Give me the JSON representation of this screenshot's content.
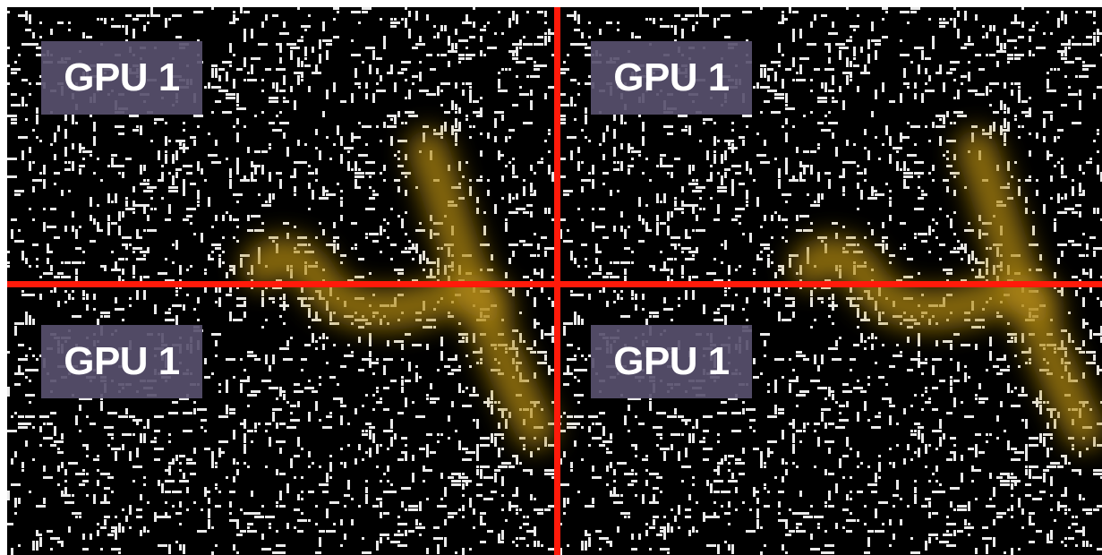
{
  "labels": {
    "top_left": "GPU 1",
    "top_right": "GPU 1",
    "bottom_left": "GPU 1",
    "bottom_right": "GPU 1"
  },
  "colors": {
    "background": "#000000",
    "noise": "#ffffff",
    "glow": "#b48c14",
    "split_line": "#ff1a0a",
    "label_bg": "#58506e",
    "label_text": "#ffffff"
  }
}
